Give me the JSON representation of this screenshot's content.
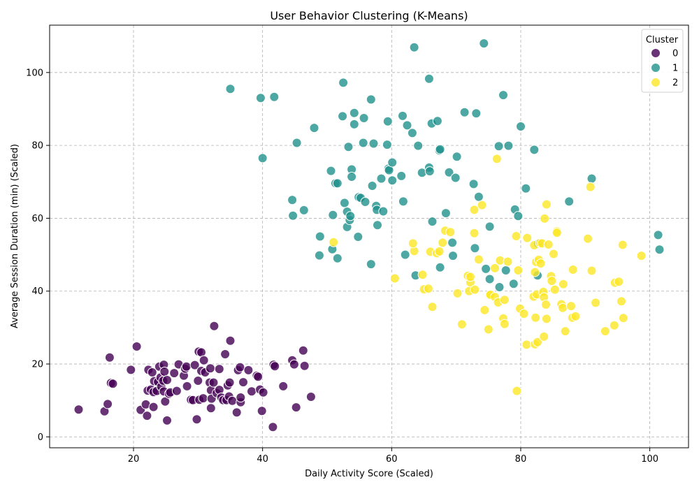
{
  "chart_data": {
    "type": "scatter",
    "title": "User Behavior Clustering (K-Means)",
    "xlabel": "Daily Activity Score (Scaled)",
    "ylabel": "Average Session Duration (min) (Scaled)",
    "xlim": [
      7,
      106
    ],
    "ylim": [
      -3,
      113
    ],
    "xticks": [
      20,
      40,
      60,
      80,
      100
    ],
    "yticks": [
      0,
      20,
      40,
      60,
      80,
      100
    ],
    "grid": true,
    "legend": {
      "title": "Cluster",
      "placement": "top-right"
    },
    "series": [
      {
        "name": "0",
        "color": "#440154",
        "points": [
          [
            11.5,
            7.5
          ],
          [
            15.5,
            7
          ],
          [
            16,
            9
          ],
          [
            16.3,
            21.8
          ],
          [
            16.5,
            14.8
          ],
          [
            16.8,
            14.6
          ],
          [
            19.6,
            18.4
          ],
          [
            20.5,
            24.8
          ],
          [
            21.1,
            7.4
          ],
          [
            21.9,
            8.9
          ],
          [
            22.2,
            12.7
          ],
          [
            22.3,
            18.4
          ],
          [
            22.1,
            5.8
          ],
          [
            22.7,
            13
          ],
          [
            22.9,
            17.7
          ],
          [
            23.1,
            12.3
          ],
          [
            23.2,
            15.3
          ],
          [
            23.1,
            8.2
          ],
          [
            23.6,
            12.6
          ],
          [
            23.8,
            15.1
          ],
          [
            24,
            19.3
          ],
          [
            24.2,
            16.3
          ],
          [
            24.3,
            13.8
          ],
          [
            24.6,
            15.4
          ],
          [
            24.7,
            19.8
          ],
          [
            24.8,
            17.9
          ],
          [
            24.7,
            12.5
          ],
          [
            24.9,
            9.7
          ],
          [
            25.2,
            15.6
          ],
          [
            25.2,
            4.5
          ],
          [
            25.5,
            11.8
          ],
          [
            25.7,
            12.2
          ],
          [
            26.3,
            17.5
          ],
          [
            26.7,
            12.6
          ],
          [
            27,
            19.9
          ],
          [
            27.8,
            16.8
          ],
          [
            28,
            18.7
          ],
          [
            28.3,
            13.9
          ],
          [
            28.2,
            19.3
          ],
          [
            28.9,
            10.2
          ],
          [
            29.2,
            10.1
          ],
          [
            29.5,
            19.7
          ],
          [
            29.8,
            4.8
          ],
          [
            30,
            15.4
          ],
          [
            30.1,
            23.4
          ],
          [
            30.2,
            10.2
          ],
          [
            30.5,
            23.2
          ],
          [
            30.5,
            18.1
          ],
          [
            30.8,
            10.6
          ],
          [
            30.9,
            21
          ],
          [
            31.1,
            17.7
          ],
          [
            31.8,
            14.9
          ],
          [
            31.9,
            18.8
          ],
          [
            32,
            12.8
          ],
          [
            32,
            7.9
          ],
          [
            32.1,
            10.5
          ],
          [
            32.4,
            14.9
          ],
          [
            32.5,
            30.4
          ],
          [
            32.9,
            12
          ],
          [
            33.3,
            18.6
          ],
          [
            33.3,
            12.9
          ],
          [
            33.6,
            10.8
          ],
          [
            33.9,
            10.1
          ],
          [
            34.2,
            22.7
          ],
          [
            34.4,
            10.1
          ],
          [
            34.6,
            14.1
          ],
          [
            34.8,
            11.1
          ],
          [
            34.9,
            14.9
          ],
          [
            35,
            26.4
          ],
          [
            35.3,
            9.9
          ],
          [
            36,
            6.7
          ],
          [
            36.2,
            18.3
          ],
          [
            36.5,
            19.1
          ],
          [
            36.6,
            9.5
          ],
          [
            36.6,
            10.8
          ],
          [
            37,
            15
          ],
          [
            37.8,
            18.3
          ],
          [
            38.3,
            12.5
          ],
          [
            39.1,
            16.8
          ],
          [
            39.3,
            16.5
          ],
          [
            39.6,
            13
          ],
          [
            39.9,
            7.1
          ],
          [
            40.1,
            12.2
          ],
          [
            41.6,
            2.7
          ],
          [
            41.7,
            19.8
          ],
          [
            41.9,
            19.4
          ],
          [
            43.2,
            13.9
          ],
          [
            44.6,
            21
          ],
          [
            44.9,
            19.9
          ],
          [
            45.2,
            8.1
          ],
          [
            46.3,
            23.7
          ],
          [
            46.5,
            19.5
          ],
          [
            47.5,
            11
          ]
        ]
      },
      {
        "name": "1",
        "color": "#21918c",
        "points": [
          [
            35,
            95.5
          ],
          [
            39.7,
            93
          ],
          [
            40,
            76.5
          ],
          [
            41.8,
            93.3
          ],
          [
            44.6,
            65
          ],
          [
            44.7,
            60.7
          ],
          [
            45.3,
            80.7
          ],
          [
            46.4,
            62.2
          ],
          [
            48,
            84.8
          ],
          [
            48.8,
            49.8
          ],
          [
            48.9,
            55
          ],
          [
            50.6,
            73
          ],
          [
            50.8,
            51.5
          ],
          [
            50.9,
            60.9
          ],
          [
            51.3,
            69.6
          ],
          [
            51.6,
            49
          ],
          [
            51.6,
            69.6
          ],
          [
            52.4,
            88
          ],
          [
            52.5,
            97.2
          ],
          [
            52.7,
            64.2
          ],
          [
            53.1,
            61.8
          ],
          [
            53.1,
            57.6
          ],
          [
            53.3,
            79.6
          ],
          [
            53.5,
            59.5
          ],
          [
            53.6,
            60.6
          ],
          [
            53.8,
            73.4
          ],
          [
            53.8,
            71.4
          ],
          [
            54.2,
            85.8
          ],
          [
            54.2,
            88.9
          ],
          [
            54.8,
            54.9
          ],
          [
            54.9,
            65.8
          ],
          [
            55.2,
            65.6
          ],
          [
            55.6,
            80.7
          ],
          [
            55.7,
            87.5
          ],
          [
            55.9,
            64.5
          ],
          [
            56.8,
            92.6
          ],
          [
            56.8,
            47.4
          ],
          [
            57,
            68.9
          ],
          [
            57.2,
            80.5
          ],
          [
            57.6,
            63.4
          ],
          [
            57.8,
            58.1
          ],
          [
            57.7,
            62.3
          ],
          [
            58.4,
            70.9
          ],
          [
            58.7,
            61.9
          ],
          [
            59.3,
            80.2
          ],
          [
            59.4,
            86.6
          ],
          [
            59.5,
            73.6
          ],
          [
            59.6,
            73.2
          ],
          [
            60.1,
            75.3
          ],
          [
            60.1,
            70.4
          ],
          [
            61.5,
            71.6
          ],
          [
            61.7,
            88.1
          ],
          [
            61.8,
            64.6
          ],
          [
            62.1,
            50
          ],
          [
            62.4,
            85.5
          ],
          [
            63.2,
            83.4
          ],
          [
            63.5,
            106.9
          ],
          [
            63.7,
            44.3
          ],
          [
            64.1,
            79.9
          ],
          [
            64.7,
            72.5
          ],
          [
            65.8,
            98.3
          ],
          [
            65.8,
            73.9
          ],
          [
            65.9,
            72.9
          ],
          [
            66.2,
            86
          ],
          [
            66.3,
            59.1
          ],
          [
            67.1,
            86.7
          ],
          [
            67.4,
            78.6
          ],
          [
            67.5,
            78.9
          ],
          [
            67.5,
            46.5
          ],
          [
            68.4,
            61.4
          ],
          [
            68.9,
            72.6
          ],
          [
            69.4,
            53.3
          ],
          [
            69.5,
            49.7
          ],
          [
            69.9,
            71.1
          ],
          [
            70.1,
            76.9
          ],
          [
            71.3,
            89.1
          ],
          [
            72.7,
            69.4
          ],
          [
            72.9,
            51.8
          ],
          [
            73.1,
            88.8
          ],
          [
            73.5,
            65.9
          ],
          [
            74.3,
            108
          ],
          [
            74.6,
            46.1
          ],
          [
            75.2,
            57.7
          ],
          [
            75.2,
            43.3
          ],
          [
            76.6,
            79.8
          ],
          [
            76.7,
            41.1
          ],
          [
            77.3,
            93.8
          ],
          [
            77.7,
            45.7
          ],
          [
            78.1,
            79.9
          ],
          [
            78.9,
            42
          ],
          [
            79.1,
            62.4
          ],
          [
            79.6,
            60.6
          ],
          [
            80,
            85.2
          ],
          [
            80.8,
            68.2
          ],
          [
            82.1,
            78.8
          ],
          [
            82.6,
            44.3
          ],
          [
            82.7,
            53
          ],
          [
            87.5,
            64.6
          ],
          [
            91,
            70.9
          ],
          [
            101.3,
            55.4
          ],
          [
            101.5,
            51.4
          ]
        ]
      },
      {
        "name": "2",
        "color": "#fde725",
        "points": [
          [
            51,
            53.4
          ],
          [
            60.5,
            43.5
          ],
          [
            63.5,
            51
          ],
          [
            63.3,
            53.1
          ],
          [
            64.8,
            44.5
          ],
          [
            65,
            40.5
          ],
          [
            65.7,
            40.7
          ],
          [
            66,
            50.8
          ],
          [
            66.3,
            35.7
          ],
          [
            67,
            50.4
          ],
          [
            67.4,
            50.9
          ],
          [
            67.9,
            53.3
          ],
          [
            68.3,
            56.6
          ],
          [
            69.1,
            56.2
          ],
          [
            70.2,
            39.4
          ],
          [
            70.9,
            30.9
          ],
          [
            71.8,
            44.2
          ],
          [
            72,
            40
          ],
          [
            72.2,
            42.4
          ],
          [
            72.2,
            43.9
          ],
          [
            72.8,
            55.9
          ],
          [
            72.8,
            62.3
          ],
          [
            72.9,
            40.4
          ],
          [
            73.5,
            48.7
          ],
          [
            74,
            63.6
          ],
          [
            74.4,
            34.8
          ],
          [
            75,
            29.5
          ],
          [
            75.2,
            38.9
          ],
          [
            75.3,
            39
          ],
          [
            76,
            38.4
          ],
          [
            76,
            46.3
          ],
          [
            76.3,
            76.3
          ],
          [
            76.5,
            36.9
          ],
          [
            76.8,
            48.4
          ],
          [
            77.3,
            32.5
          ],
          [
            77.5,
            37.6
          ],
          [
            77.5,
            31
          ],
          [
            78,
            48.1
          ],
          [
            79.3,
            55.1
          ],
          [
            79.4,
            12.6
          ],
          [
            79.6,
            45.7
          ],
          [
            79.9,
            35.2
          ],
          [
            80.5,
            33.8
          ],
          [
            80.9,
            25.3
          ],
          [
            81,
            54.6
          ],
          [
            82,
            38.5
          ],
          [
            82.1,
            52.6
          ],
          [
            82.2,
            45.2
          ],
          [
            82.2,
            25.4
          ],
          [
            82.3,
            32.7
          ],
          [
            82.4,
            48
          ],
          [
            82.5,
            39.1
          ],
          [
            82.6,
            26
          ],
          [
            82.8,
            48.6
          ],
          [
            83,
            53.2
          ],
          [
            83.1,
            47.6
          ],
          [
            83.3,
            53.1
          ],
          [
            83.5,
            39.8
          ],
          [
            83.6,
            27.5
          ],
          [
            83.6,
            38.3
          ],
          [
            83.7,
            59.9
          ],
          [
            83.9,
            36.3
          ],
          [
            84,
            63.8
          ],
          [
            84,
            32.4
          ],
          [
            84.3,
            52.8
          ],
          [
            84.7,
            44.1
          ],
          [
            84.8,
            42.8
          ],
          [
            85.1,
            50.2
          ],
          [
            85.3,
            40.4
          ],
          [
            85.6,
            56.4
          ],
          [
            85.6,
            56
          ],
          [
            86.3,
            36.4
          ],
          [
            86.5,
            35.4
          ],
          [
            86.6,
            41.9
          ],
          [
            86.9,
            29
          ],
          [
            87.8,
            35.9
          ],
          [
            88,
            32.7
          ],
          [
            88.1,
            45.9
          ],
          [
            88.5,
            33.1
          ],
          [
            90.4,
            54.4
          ],
          [
            90.8,
            68.6
          ],
          [
            91,
            45.6
          ],
          [
            91.6,
            36.8
          ],
          [
            93.1,
            29
          ],
          [
            94.5,
            30.6
          ],
          [
            94.6,
            42.3
          ],
          [
            95.2,
            42.6
          ],
          [
            95.6,
            37.2
          ],
          [
            95.8,
            52.7
          ],
          [
            95.9,
            32.6
          ],
          [
            98.7,
            49.7
          ]
        ]
      }
    ]
  }
}
